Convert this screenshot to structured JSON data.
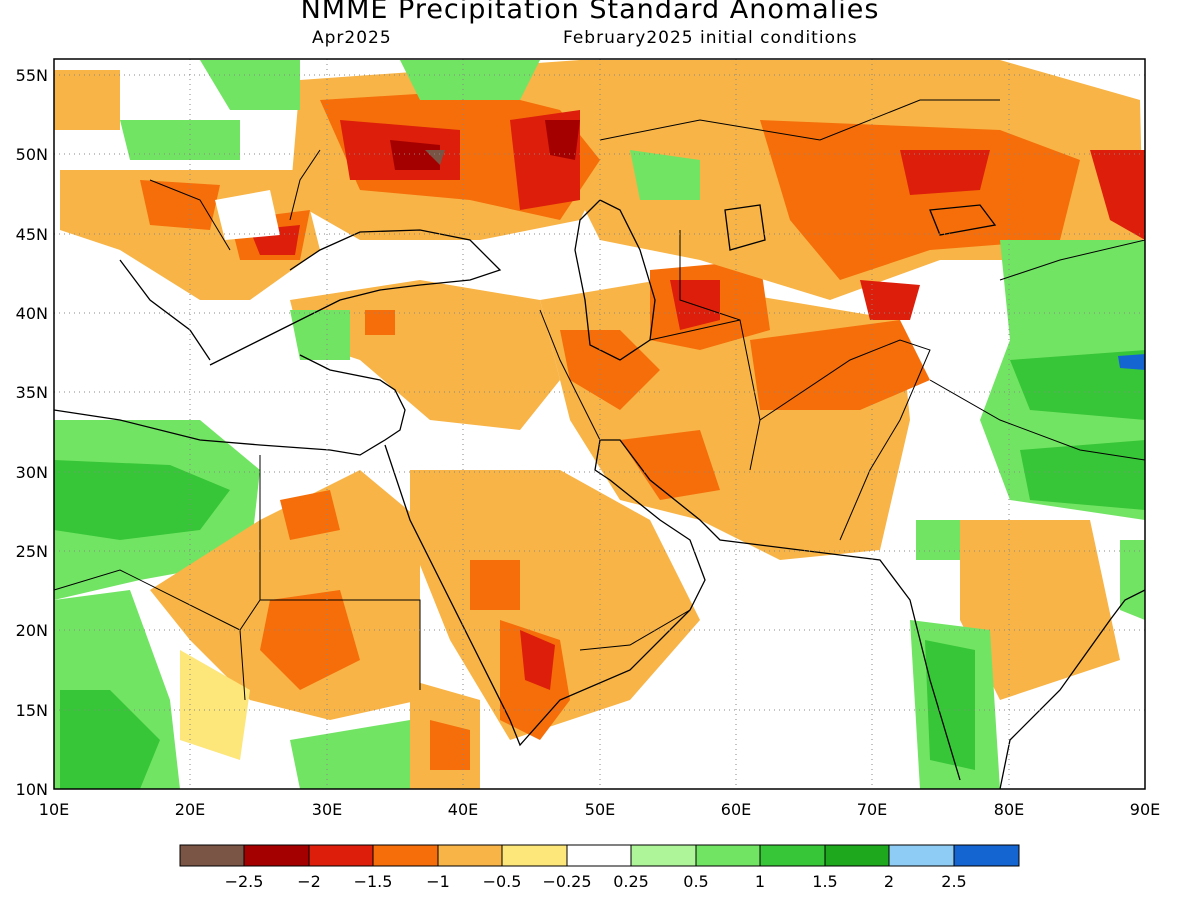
{
  "header": {
    "title": "NMME Precipitation Standard Anomalies",
    "target_month": "Apr2025",
    "init": "February2025 initial conditions"
  },
  "map": {
    "lon_range": [
      10,
      90
    ],
    "lat_range": [
      10,
      56
    ],
    "lon_ticks": [
      "10E",
      "20E",
      "30E",
      "40E",
      "50E",
      "60E",
      "70E",
      "80E",
      "90E"
    ],
    "lat_ticks": [
      "10N",
      "15N",
      "20N",
      "25N",
      "30N",
      "35N",
      "40N",
      "45N",
      "50N",
      "55N"
    ],
    "gridlines": "dotted"
  },
  "colors": {
    "cat_below_25": "#7a5546",
    "cat_m25_m2": "#a50000",
    "cat_m2_m15": "#dc1e0a",
    "cat_m15_m1": "#f56e0a",
    "cat_m1_m05": "#f8b446",
    "cat_m05_m025": "#fde67a",
    "cat_near_zero": "#ffffff",
    "cat_025_05": "#aef59a",
    "cat_05_1": "#72e464",
    "cat_1_15": "#37c637",
    "cat_15_2": "#1da81d",
    "cat_2_25": "#8ecbf5",
    "cat_above_25": "#1465d2",
    "land_outline": "#000000"
  },
  "colorbar": {
    "labels": [
      "−2.5",
      "−2",
      "−1.5",
      "−1",
      "−0.5",
      "−0.25",
      "0.25",
      "0.5",
      "1",
      "1.5",
      "2",
      "2.5"
    ]
  }
}
